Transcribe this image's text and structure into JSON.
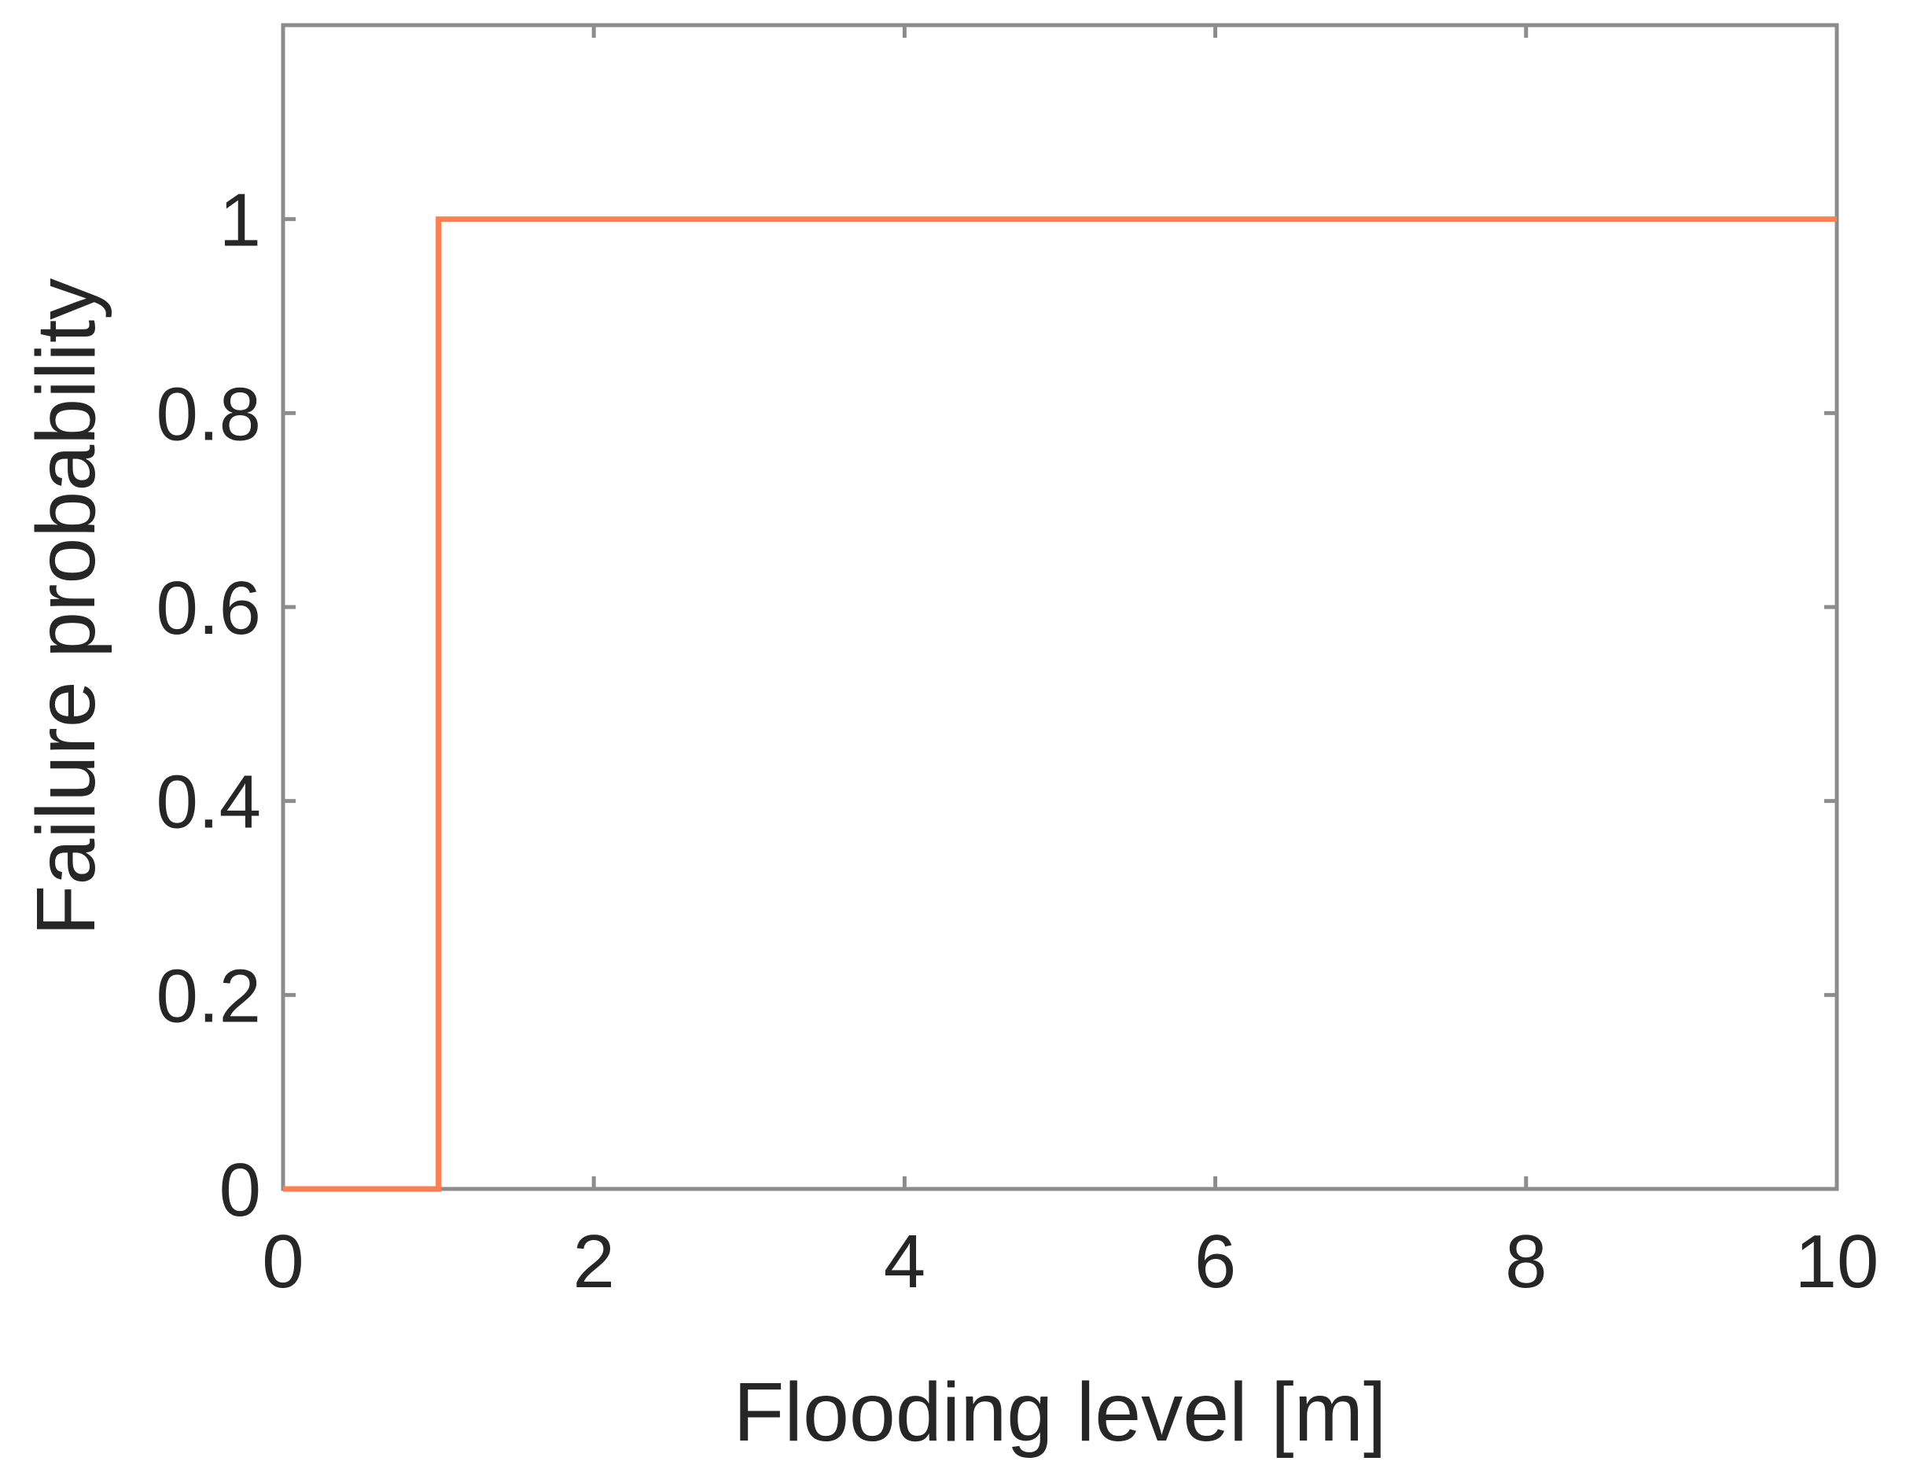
{
  "chart_data": {
    "type": "line",
    "title": "",
    "xlabel": "Flooding level [m]",
    "ylabel": "Failure probability",
    "xlim": [
      0,
      10
    ],
    "ylim": [
      0,
      1.2
    ],
    "xticks": [
      0,
      2,
      4,
      6,
      8,
      10
    ],
    "xtick_labels": [
      "0",
      "2",
      "4",
      "6",
      "8",
      "10"
    ],
    "yticks": [
      0,
      0.2,
      0.4,
      0.6,
      0.8,
      1
    ],
    "ytick_labels": [
      "0",
      "0.2",
      "0.4",
      "0.6",
      "0.8",
      "1"
    ],
    "grid": false,
    "box": true,
    "series": [
      {
        "color": "#ff7f50",
        "x": [
          0,
          0.97,
          0.97,
          1.0,
          1.0,
          10
        ],
        "y": [
          0,
          0,
          0,
          0,
          1,
          1
        ]
      }
    ]
  },
  "colors": {
    "axis": "#8c8c8c",
    "text": "#262626",
    "background": "#ffffff"
  }
}
